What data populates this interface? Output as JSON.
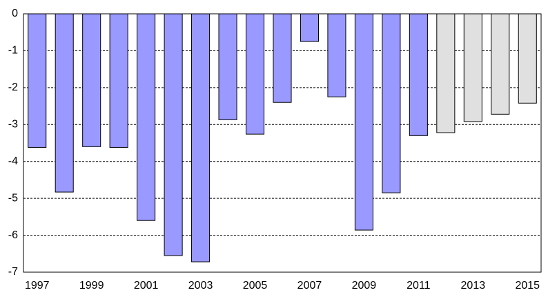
{
  "chart_data": {
    "type": "bar",
    "categories": [
      "1997",
      null,
      "1999",
      null,
      "2001",
      null,
      "2003",
      null,
      "2005",
      null,
      "2007",
      null,
      "2009",
      null,
      "2011",
      null,
      "2013",
      null,
      "2015"
    ],
    "values": [
      -3.62,
      -4.83,
      -3.6,
      -3.62,
      -5.6,
      -6.55,
      -6.72,
      -2.87,
      -3.26,
      -2.4,
      -0.75,
      -2.25,
      -5.86,
      -4.85,
      -3.3,
      -3.22,
      -2.92,
      -2.72,
      -2.42
    ],
    "colors": [
      "#9999ff",
      "#9999ff",
      "#9999ff",
      "#9999ff",
      "#9999ff",
      "#9999ff",
      "#9999ff",
      "#9999ff",
      "#9999ff",
      "#9999ff",
      "#9999ff",
      "#9999ff",
      "#9999ff",
      "#9999ff",
      "#9999ff",
      "#e0e0e0",
      "#e0e0e0",
      "#e0e0e0",
      "#e0e0e0"
    ],
    "ylim": [
      -7,
      0
    ],
    "yticks": [
      0,
      -1,
      -2,
      -3,
      -4,
      -5,
      -6,
      -7
    ],
    "grid": true
  }
}
